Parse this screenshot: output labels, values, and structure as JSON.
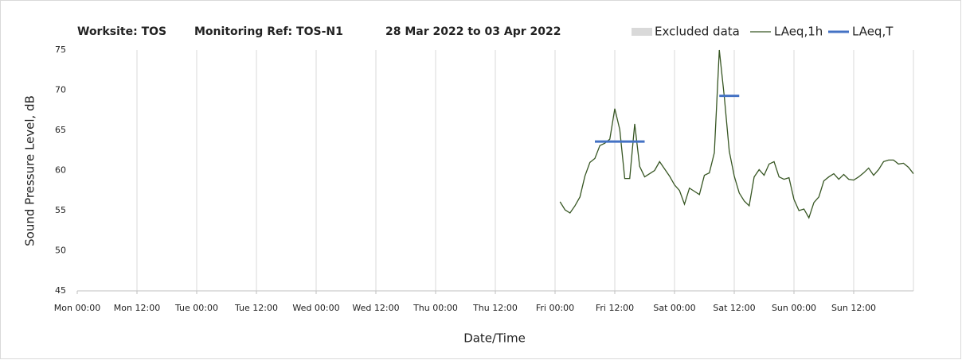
{
  "chart_data": {
    "type": "line",
    "title_parts": [
      "Worksite: TOS",
      "Monitoring Ref: TOS-N1",
      "28 Mar 2022 to 03 Apr 2022"
    ],
    "x_label": "Date/Time",
    "y_label": "Sound Pressure Level, dB",
    "xlim": [
      0,
      168
    ],
    "xticks": [
      {
        "value": 0,
        "label": "Mon 00:00"
      },
      {
        "value": 12,
        "label": "Mon 12:00"
      },
      {
        "value": 24,
        "label": "Tue 00:00"
      },
      {
        "value": 36,
        "label": "Tue 12:00"
      },
      {
        "value": 48,
        "label": "Wed 00:00"
      },
      {
        "value": 60,
        "label": "Wed 12:00"
      },
      {
        "value": 72,
        "label": "Thu 00:00"
      },
      {
        "value": 84,
        "label": "Thu 12:00"
      },
      {
        "value": 96,
        "label": "Fri 00:00"
      },
      {
        "value": 108,
        "label": "Fri 12:00"
      },
      {
        "value": 120,
        "label": "Sat 00:00"
      },
      {
        "value": 132,
        "label": "Sat 12:00"
      },
      {
        "value": 144,
        "label": "Sun 00:00"
      },
      {
        "value": 156,
        "label": "Sun 12:00"
      }
    ],
    "ylim": [
      45,
      75
    ],
    "yticks": [
      45,
      50,
      55,
      60,
      65,
      70,
      75
    ],
    "grid": "x",
    "excluded": {
      "name": "Excluded data",
      "color": "#d9d9d9"
    },
    "series": [
      {
        "name": "LAeq,1h",
        "color": "#375623",
        "x": [
          97,
          98,
          99,
          100,
          101,
          102,
          103,
          104,
          105,
          106,
          107,
          108,
          109,
          110,
          111,
          112,
          113,
          114,
          115,
          116,
          117,
          118,
          119,
          120,
          121,
          122,
          123,
          124,
          125,
          126,
          127,
          128,
          129,
          130,
          131,
          132,
          133,
          134,
          135,
          136,
          137,
          138,
          139,
          140,
          141,
          142,
          143,
          144,
          145,
          146,
          147,
          148,
          149,
          150,
          151,
          152,
          153,
          154,
          155,
          156,
          157,
          158,
          159,
          160,
          161,
          162,
          163,
          164,
          165,
          166,
          167,
          168
        ],
        "values": [
          56.1,
          55.1,
          54.7,
          55.6,
          56.7,
          59.3,
          61,
          61.5,
          63.1,
          63.4,
          63.9,
          67.7,
          65.1,
          59,
          59,
          65.8,
          60.5,
          59.2,
          59.6,
          60,
          61.1,
          60.2,
          59.3,
          58.2,
          57.5,
          55.8,
          57.8,
          57.4,
          57,
          59.4,
          59.7,
          62.2,
          75,
          69.2,
          62.4,
          59.3,
          57.2,
          56.2,
          55.6,
          59.2,
          60.1,
          59.4,
          60.8,
          61.1,
          59.2,
          58.9,
          59.1,
          56.4,
          55,
          55.2,
          54.1,
          56,
          56.7,
          58.7,
          59.2,
          59.6,
          58.9,
          59.5,
          58.9,
          58.8,
          59.2,
          59.7,
          60.3,
          59.4,
          60.1,
          61.1,
          61.3,
          61.3,
          60.8,
          60.9,
          60.4,
          59.6
        ]
      },
      {
        "name": "LAeq,T",
        "color": "#4472c4",
        "x": [
          104,
          114,
          121,
          129,
          133
        ],
        "values": [
          63.6,
          63.6,
          null,
          69.3,
          69.3
        ]
      }
    ]
  }
}
